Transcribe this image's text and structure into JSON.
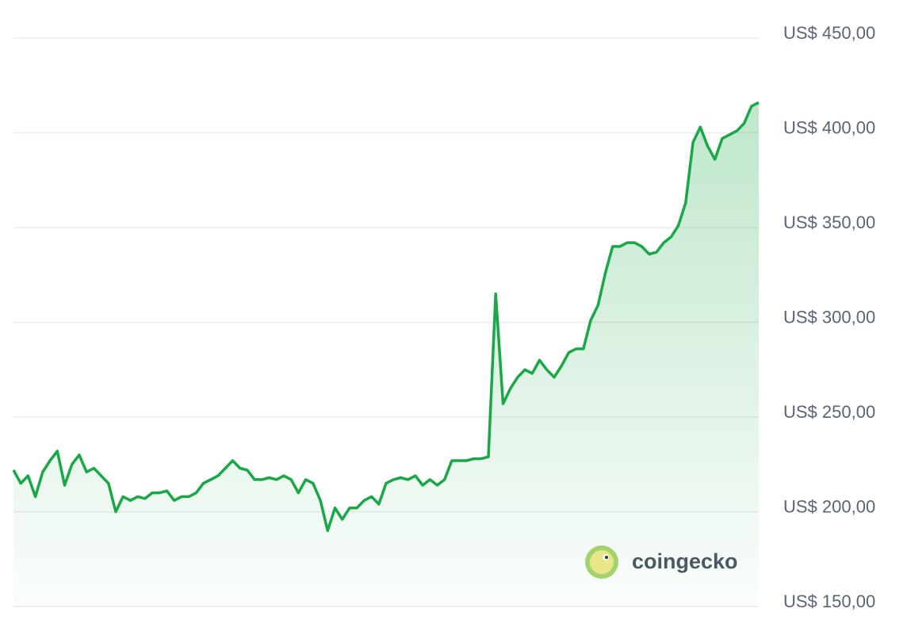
{
  "chart_data": {
    "type": "line",
    "color": "#1aa748",
    "grid": true,
    "ylim": [
      150,
      450
    ],
    "yticks": [
      {
        "value": 150,
        "label": "US$ 150,00"
      },
      {
        "value": 200,
        "label": "US$ 200,00"
      },
      {
        "value": 250,
        "label": "US$ 250,00"
      },
      {
        "value": 300,
        "label": "US$ 300,00"
      },
      {
        "value": 350,
        "label": "US$ 350,00"
      },
      {
        "value": 400,
        "label": "US$ 400,00"
      },
      {
        "value": 450,
        "label": "US$ 450,00"
      }
    ],
    "values": [
      222,
      215,
      219,
      208,
      221,
      227,
      232,
      214,
      225,
      230,
      221,
      223,
      219,
      215,
      200,
      208,
      206,
      208,
      207,
      210,
      210,
      211,
      206,
      208,
      208,
      210,
      215,
      217,
      219,
      223,
      227,
      223,
      222,
      217,
      217,
      218,
      217,
      219,
      217,
      210,
      217,
      215,
      206,
      190,
      202,
      196,
      202,
      202,
      206,
      208,
      204,
      215,
      217,
      218,
      217,
      219,
      214,
      217,
      214,
      217,
      227,
      227,
      227,
      228,
      228,
      229,
      315,
      257,
      265,
      271,
      275,
      273,
      280,
      275,
      271,
      277,
      284,
      286,
      286,
      301,
      309,
      326,
      340,
      340,
      342,
      342,
      340,
      336,
      337,
      342,
      345,
      351,
      363,
      395,
      403,
      393,
      386,
      397,
      399,
      401,
      405,
      414,
      416
    ],
    "watermark": "coingecko"
  }
}
